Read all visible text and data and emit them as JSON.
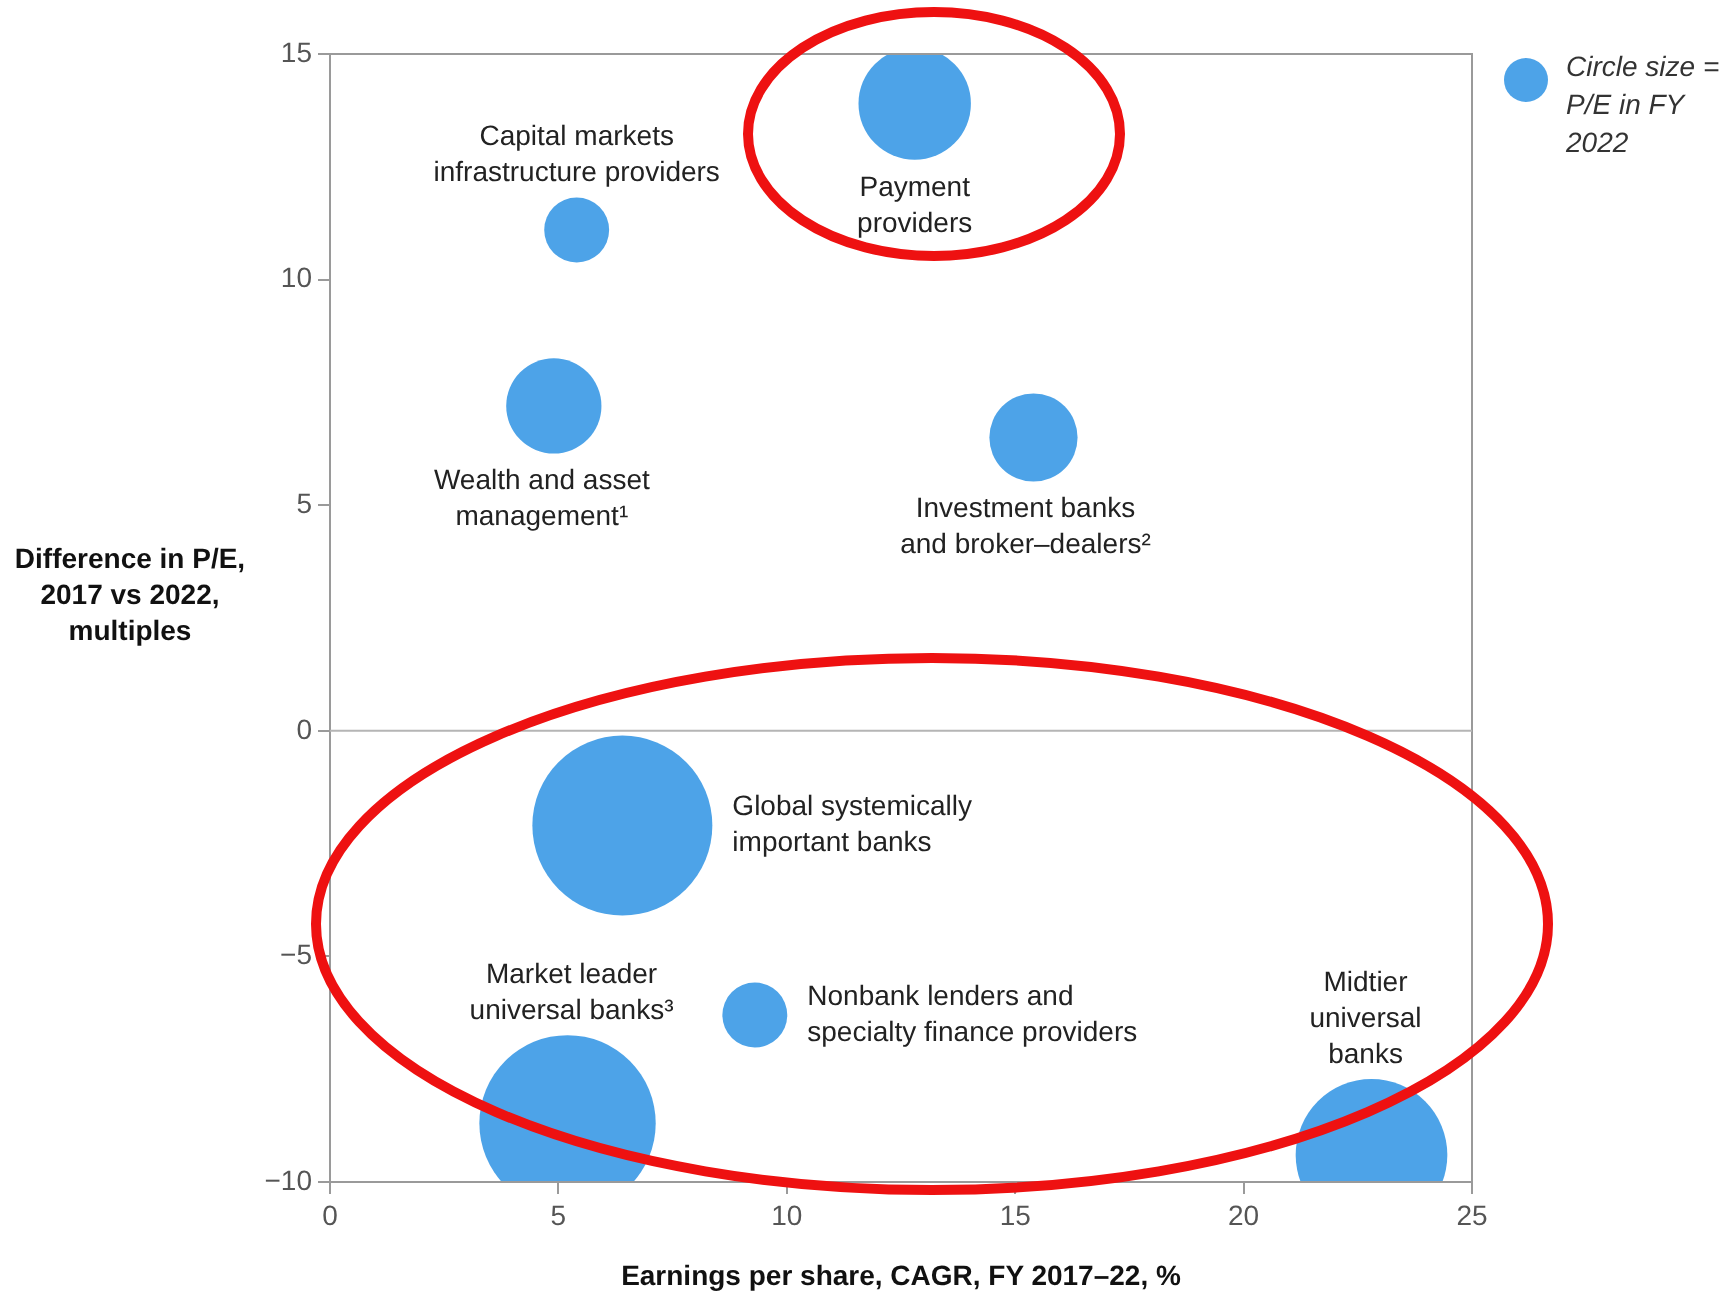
{
  "chart_data": {
    "type": "bubble",
    "xlabel": "Earnings per share, CAGR, FY 2017–22, %",
    "ylabel": "Difference in P/E, 2017 vs 2022, multiples",
    "xlim": [
      0,
      25
    ],
    "xticks": [
      0,
      5,
      10,
      15,
      20,
      25
    ],
    "ylim": [
      -10,
      15
    ],
    "yticks": [
      -10,
      -5,
      0,
      5,
      10,
      15
    ],
    "grid": false,
    "legend": false,
    "ref_lines": [
      {
        "axis": "y",
        "value": 0,
        "color": "#b5b5b5"
      }
    ],
    "annotations": [
      "Circle size = P/E in FY 2022"
    ],
    "series": [
      {
        "name": "Payment\nproviders",
        "color": "#4da3e8",
        "x": [
          12.8
        ],
        "values": [
          13.9
        ],
        "sizes": [
          0.39
        ]
      },
      {
        "name": "Capital markets\ninfrastructure providers",
        "color": "#4da3e8",
        "x": [
          5.4
        ],
        "values": [
          11.1
        ],
        "sizes": [
          0.13
        ]
      },
      {
        "name": "Wealth and asset\nmanagement¹",
        "color": "#4da3e8",
        "x": [
          4.9
        ],
        "values": [
          7.2
        ],
        "sizes": [
          0.28
        ]
      },
      {
        "name": "Investment banks\nand broker–dealers²",
        "color": "#4da3e8",
        "x": [
          15.4
        ],
        "values": [
          6.5
        ],
        "sizes": [
          0.24
        ]
      },
      {
        "name": "Global systemically\nimportant banks",
        "color": "#4da3e8",
        "x": [
          6.4
        ],
        "values": [
          -2.1
        ],
        "sizes": [
          1
        ]
      },
      {
        "name": "Nonbank lenders and\nspecialty finance providers",
        "color": "#4da3e8",
        "x": [
          9.3
        ],
        "values": [
          -6.3
        ],
        "sizes": [
          0.13
        ]
      },
      {
        "name": "Market leader\nuniversal banks³",
        "color": "#4da3e8",
        "x": [
          5.2
        ],
        "values": [
          -8.7
        ],
        "sizes": [
          0.96
        ]
      },
      {
        "name": "Midtier\nuniversal\nbanks",
        "color": "#4da3e8",
        "x": [
          22.8
        ],
        "values": [
          -9.4
        ],
        "sizes": [
          0.71
        ]
      }
    ]
  }
}
